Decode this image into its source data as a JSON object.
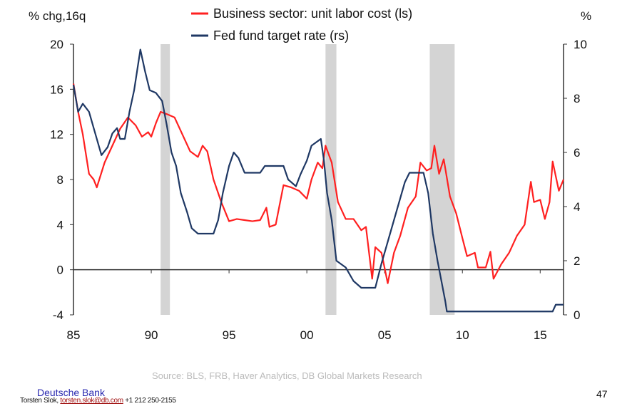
{
  "chart_data": {
    "type": "line",
    "left_axis_label": "% chg,16q",
    "right_axis_label": "%",
    "ylim_left": [
      -4,
      20
    ],
    "ylim_right": [
      0,
      10
    ],
    "xlim": [
      1985,
      2016.5
    ],
    "left_ticks": [
      "20",
      "16",
      "12",
      "8",
      "4",
      "0",
      "-4"
    ],
    "left_tick_values": [
      20,
      16,
      12,
      8,
      4,
      0,
      -4
    ],
    "right_ticks": [
      "10",
      "8",
      "6",
      "4",
      "2",
      "0"
    ],
    "right_tick_values": [
      10,
      8,
      6,
      4,
      2,
      0
    ],
    "x_ticks": [
      "85",
      "90",
      "95",
      "00",
      "05",
      "10",
      "15"
    ],
    "x_tick_values": [
      1985,
      1990,
      1995,
      2000,
      2005,
      2010,
      2015
    ],
    "recessions": [
      [
        1990.6,
        1991.2
      ],
      [
        2001.2,
        2001.9
      ],
      [
        2007.9,
        2009.5
      ]
    ],
    "series": [
      {
        "name": "Business sector: unit labor cost (ls)",
        "axis": "left",
        "color": "#ff2020",
        "points": [
          [
            1985,
            16.5
          ],
          [
            1985.3,
            14
          ],
          [
            1985.6,
            12
          ],
          [
            1986,
            8.5
          ],
          [
            1986.3,
            8
          ],
          [
            1986.5,
            7.3
          ],
          [
            1987,
            9.5
          ],
          [
            1987.5,
            11
          ],
          [
            1988,
            12.5
          ],
          [
            1988.5,
            13.5
          ],
          [
            1989,
            12.8
          ],
          [
            1989.4,
            11.8
          ],
          [
            1989.8,
            12.2
          ],
          [
            1990,
            11.8
          ],
          [
            1990.3,
            13
          ],
          [
            1990.6,
            14
          ],
          [
            1991,
            13.8
          ],
          [
            1991.5,
            13.5
          ],
          [
            1992,
            12
          ],
          [
            1992.5,
            10.5
          ],
          [
            1993,
            10
          ],
          [
            1993.3,
            11
          ],
          [
            1993.6,
            10.5
          ],
          [
            1994,
            8
          ],
          [
            1994.5,
            6
          ],
          [
            1995,
            4.3
          ],
          [
            1995.5,
            4.5
          ],
          [
            1996,
            4.4
          ],
          [
            1996.5,
            4.3
          ],
          [
            1997,
            4.4
          ],
          [
            1997.4,
            5.5
          ],
          [
            1997.6,
            3.8
          ],
          [
            1998,
            4
          ],
          [
            1998.5,
            7.5
          ],
          [
            1999,
            7.3
          ],
          [
            1999.5,
            7
          ],
          [
            2000,
            6.3
          ],
          [
            2000.3,
            8
          ],
          [
            2000.7,
            9.5
          ],
          [
            2001,
            9
          ],
          [
            2001.2,
            11
          ],
          [
            2001.6,
            9.5
          ],
          [
            2002,
            6
          ],
          [
            2002.5,
            4.5
          ],
          [
            2003,
            4.5
          ],
          [
            2003.5,
            3.5
          ],
          [
            2003.8,
            3.8
          ],
          [
            2004.2,
            -0.8
          ],
          [
            2004.4,
            2
          ],
          [
            2004.8,
            1.5
          ],
          [
            2005.2,
            -1.2
          ],
          [
            2005.6,
            1.5
          ],
          [
            2006,
            3
          ],
          [
            2006.5,
            5.5
          ],
          [
            2007,
            6.5
          ],
          [
            2007.3,
            9.5
          ],
          [
            2007.7,
            8.8
          ],
          [
            2008,
            9
          ],
          [
            2008.2,
            11
          ],
          [
            2008.5,
            8.5
          ],
          [
            2008.8,
            9.8
          ],
          [
            2009.2,
            6.5
          ],
          [
            2009.6,
            5
          ],
          [
            2010,
            2.8
          ],
          [
            2010.3,
            1.2
          ],
          [
            2010.8,
            1.5
          ],
          [
            2011,
            0.2
          ],
          [
            2011.5,
            0.2
          ],
          [
            2011.8,
            1.6
          ],
          [
            2012,
            -0.8
          ],
          [
            2012.5,
            0.5
          ],
          [
            2013,
            1.5
          ],
          [
            2013.5,
            3
          ],
          [
            2014,
            4
          ],
          [
            2014.4,
            7.8
          ],
          [
            2014.6,
            6
          ],
          [
            2015,
            6.2
          ],
          [
            2015.3,
            4.5
          ],
          [
            2015.6,
            6
          ],
          [
            2015.8,
            9.6
          ],
          [
            2016.2,
            7
          ],
          [
            2016.5,
            8
          ]
        ]
      },
      {
        "name": "Fed fund target rate (rs)",
        "axis": "right",
        "color": "#1f3864",
        "points": [
          [
            1985,
            8.5
          ],
          [
            1985.3,
            7.5
          ],
          [
            1985.6,
            7.8
          ],
          [
            1986,
            7.5
          ],
          [
            1986.5,
            6.5
          ],
          [
            1986.8,
            5.9
          ],
          [
            1987.2,
            6.2
          ],
          [
            1987.5,
            6.7
          ],
          [
            1987.8,
            6.9
          ],
          [
            1988,
            6.5
          ],
          [
            1988.3,
            6.5
          ],
          [
            1988.6,
            7.5
          ],
          [
            1988.9,
            8.3
          ],
          [
            1989.3,
            9.8
          ],
          [
            1989.6,
            9
          ],
          [
            1989.9,
            8.3
          ],
          [
            1990.3,
            8.2
          ],
          [
            1990.7,
            7.9
          ],
          [
            1991,
            7
          ],
          [
            1991.3,
            6
          ],
          [
            1991.6,
            5.5
          ],
          [
            1991.9,
            4.5
          ],
          [
            1992.3,
            3.8
          ],
          [
            1992.6,
            3.2
          ],
          [
            1993,
            3
          ],
          [
            1994,
            3
          ],
          [
            1994.3,
            3.5
          ],
          [
            1994.6,
            4.5
          ],
          [
            1995,
            5.5
          ],
          [
            1995.3,
            6
          ],
          [
            1995.6,
            5.8
          ],
          [
            1996,
            5.25
          ],
          [
            1997,
            5.25
          ],
          [
            1997.3,
            5.5
          ],
          [
            1998.5,
            5.5
          ],
          [
            1998.8,
            5
          ],
          [
            1999.3,
            4.75
          ],
          [
            1999.6,
            5.2
          ],
          [
            2000,
            5.7
          ],
          [
            2000.3,
            6.25
          ],
          [
            2000.9,
            6.5
          ],
          [
            2001.1,
            5.7
          ],
          [
            2001.3,
            4.5
          ],
          [
            2001.6,
            3.5
          ],
          [
            2001.9,
            2
          ],
          [
            2002.5,
            1.75
          ],
          [
            2003,
            1.25
          ],
          [
            2003.5,
            1
          ],
          [
            2004.4,
            1
          ],
          [
            2004.8,
            1.9
          ],
          [
            2005.3,
            2.9
          ],
          [
            2005.7,
            3.7
          ],
          [
            2006.3,
            4.9
          ],
          [
            2006.6,
            5.25
          ],
          [
            2007.5,
            5.25
          ],
          [
            2007.8,
            4.5
          ],
          [
            2008.1,
            3
          ],
          [
            2008.4,
            2
          ],
          [
            2008.9,
            0.5
          ],
          [
            2009,
            0.125
          ],
          [
            2015.8,
            0.125
          ],
          [
            2016,
            0.375
          ],
          [
            2016.5,
            0.375
          ]
        ]
      }
    ]
  },
  "footer": {
    "source": "Source: BLS, FRB, Haver Analytics, DB Global Markets Research",
    "brand": "Deutsche Bank",
    "author": "Torsten Slok,",
    "email": "torsten.slok@db.com",
    "phone": "+1 212 250-2155",
    "page_number": "47"
  }
}
